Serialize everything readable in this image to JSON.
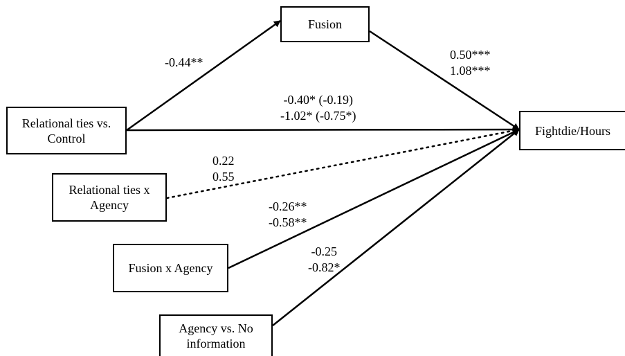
{
  "nodes": {
    "fusion": {
      "lines": [
        "Fusion"
      ]
    },
    "relational_control": {
      "lines": [
        "Relational ties vs.",
        "Control"
      ]
    },
    "relational_agency": {
      "lines": [
        "Relational ties x",
        "Agency"
      ]
    },
    "fusion_agency": {
      "lines": [
        "Fusion x Agency"
      ]
    },
    "agency_noinfo": {
      "lines": [
        "Agency vs. No",
        "information"
      ]
    },
    "outcome": {
      "lines": [
        "Fightdie/Hours"
      ]
    }
  },
  "paths": {
    "relational_to_fusion": {
      "lines": [
        "-0.44**"
      ],
      "style": "solid"
    },
    "fusion_to_outcome": {
      "lines": [
        "0.50***",
        "1.08***"
      ],
      "style": "solid"
    },
    "relational_to_outcome": {
      "lines": [
        "-0.40* (-0.19)",
        "-1.02* (-0.75*)"
      ],
      "style": "solid"
    },
    "relational_agency_to_outcome": {
      "lines": [
        "0.22",
        "0.55"
      ],
      "style": "dotted"
    },
    "fusion_agency_to_outcome": {
      "lines": [
        "-0.26**",
        "-0.58**"
      ],
      "style": "solid"
    },
    "agency_noinfo_to_outcome": {
      "lines": [
        "-0.25",
        "-0.82*"
      ],
      "style": "solid"
    }
  },
  "colors": {
    "line": "#000000",
    "background": "#ffffff"
  }
}
